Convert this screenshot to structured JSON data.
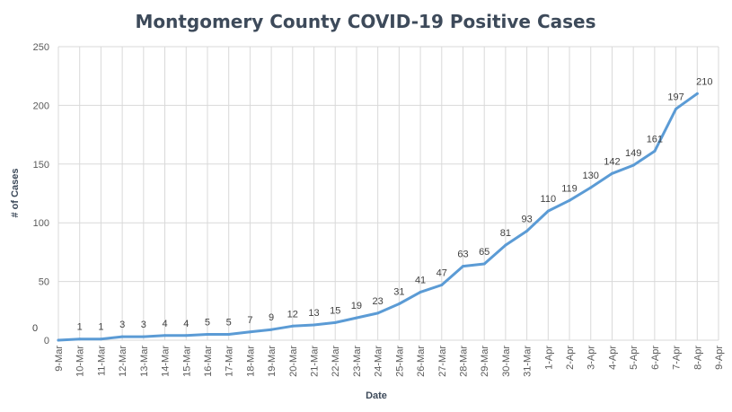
{
  "chart_data": {
    "type": "line",
    "title": "Montgomery County COVID-19 Positive Cases",
    "xlabel": "Date",
    "ylabel": "# of Cases",
    "ylim": [
      0,
      250
    ],
    "yticks": [
      0,
      50,
      100,
      150,
      200,
      250
    ],
    "grid": true,
    "legend": "none",
    "line_color": "#5b9bd5",
    "categories": [
      "9-Mar",
      "10-Mar",
      "11-Mar",
      "12-Mar",
      "13-Mar",
      "14-Mar",
      "15-Mar",
      "16-Mar",
      "17-Mar",
      "18-Mar",
      "19-Mar",
      "20-Mar",
      "21-Mar",
      "22-Mar",
      "23-Mar",
      "24-Mar",
      "25-Mar",
      "26-Mar",
      "27-Mar",
      "28-Mar",
      "29-Mar",
      "30-Mar",
      "31-Mar",
      "1-Apr",
      "2-Apr",
      "3-Apr",
      "4-Apr",
      "5-Apr",
      "6-Apr",
      "7-Apr",
      "8-Apr",
      "9-Apr"
    ],
    "values": [
      0,
      1,
      1,
      3,
      3,
      4,
      4,
      5,
      5,
      7,
      9,
      12,
      13,
      15,
      19,
      23,
      31,
      41,
      47,
      63,
      65,
      81,
      93,
      110,
      119,
      130,
      142,
      149,
      161,
      197,
      210,
      null
    ]
  }
}
